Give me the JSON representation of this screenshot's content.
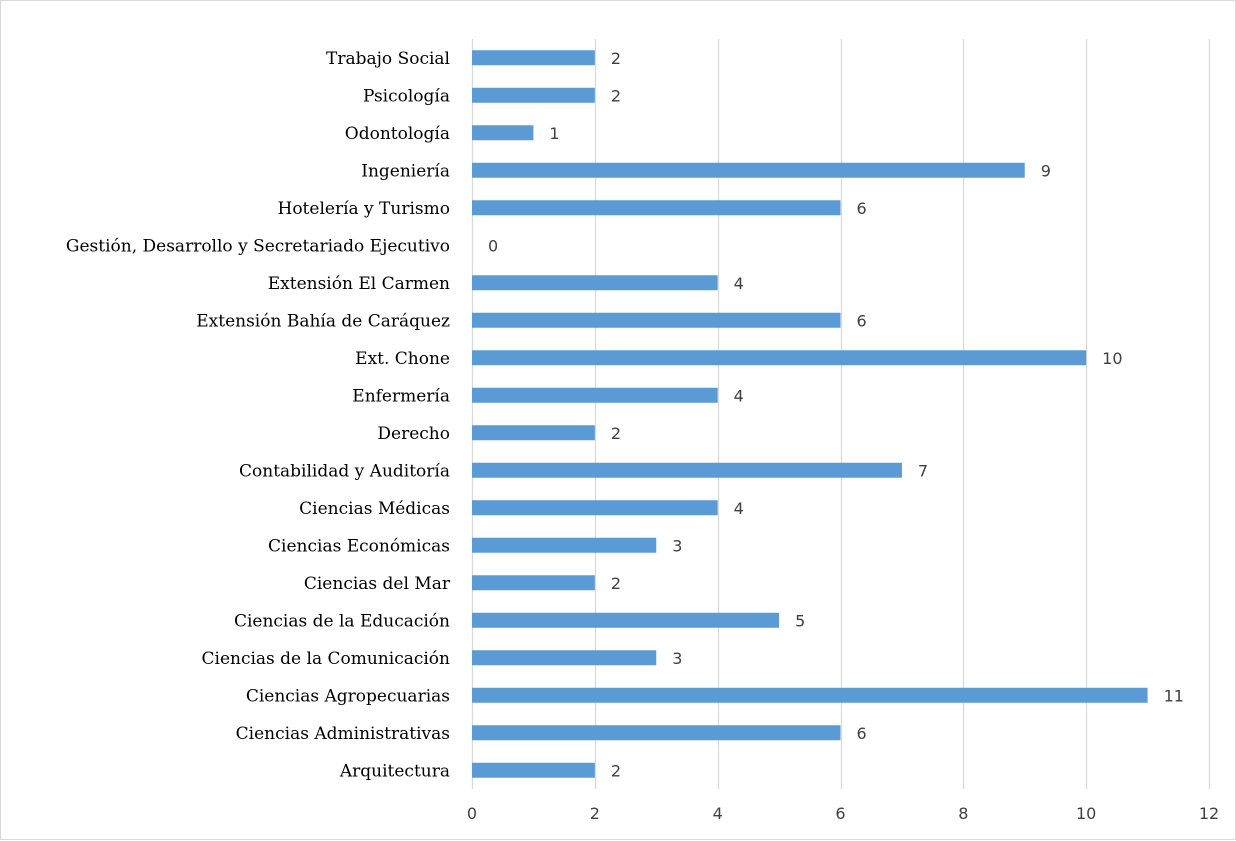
{
  "chart_data": {
    "type": "bar",
    "orientation": "horizontal",
    "categories": [
      "Arquitectura",
      "Ciencias Administrativas",
      "Ciencias Agropecuarias",
      "Ciencias de la Comunicación",
      "Ciencias de la Educación",
      "Ciencias del Mar",
      "Ciencias Económicas",
      "Ciencias Médicas",
      "Contabilidad y Auditoría",
      "Derecho",
      "Enfermería",
      "Ext. Chone",
      "Extensión Bahía de Caráquez",
      "Extensión El Carmen",
      "Gestión, Desarrollo y Secretariado Ejecutivo",
      "Hotelería y Turismo",
      "Ingeniería",
      "Odontología",
      "Psicología",
      "Trabajo Social"
    ],
    "values": [
      2,
      6,
      11,
      3,
      5,
      2,
      3,
      4,
      7,
      2,
      4,
      10,
      6,
      4,
      0,
      6,
      9,
      1,
      2,
      2
    ],
    "value_labels": [
      "2",
      "6",
      "11",
      "3",
      "5",
      "2",
      "3",
      "4",
      "7",
      "2",
      "4",
      "10",
      "6",
      "4",
      "0",
      "6",
      "9",
      "1",
      "2",
      "2"
    ],
    "xlim": [
      0,
      12
    ],
    "xticks": [
      0,
      2,
      4,
      6,
      8,
      10,
      12
    ],
    "xtick_labels": [
      "0",
      "2",
      "4",
      "6",
      "8",
      "10",
      "12"
    ],
    "title": "",
    "xlabel": "",
    "ylabel": "",
    "grid": "vertical",
    "legend": "none",
    "bar_color": "#5b9bd5",
    "grid_color": "#d9d9d9"
  }
}
